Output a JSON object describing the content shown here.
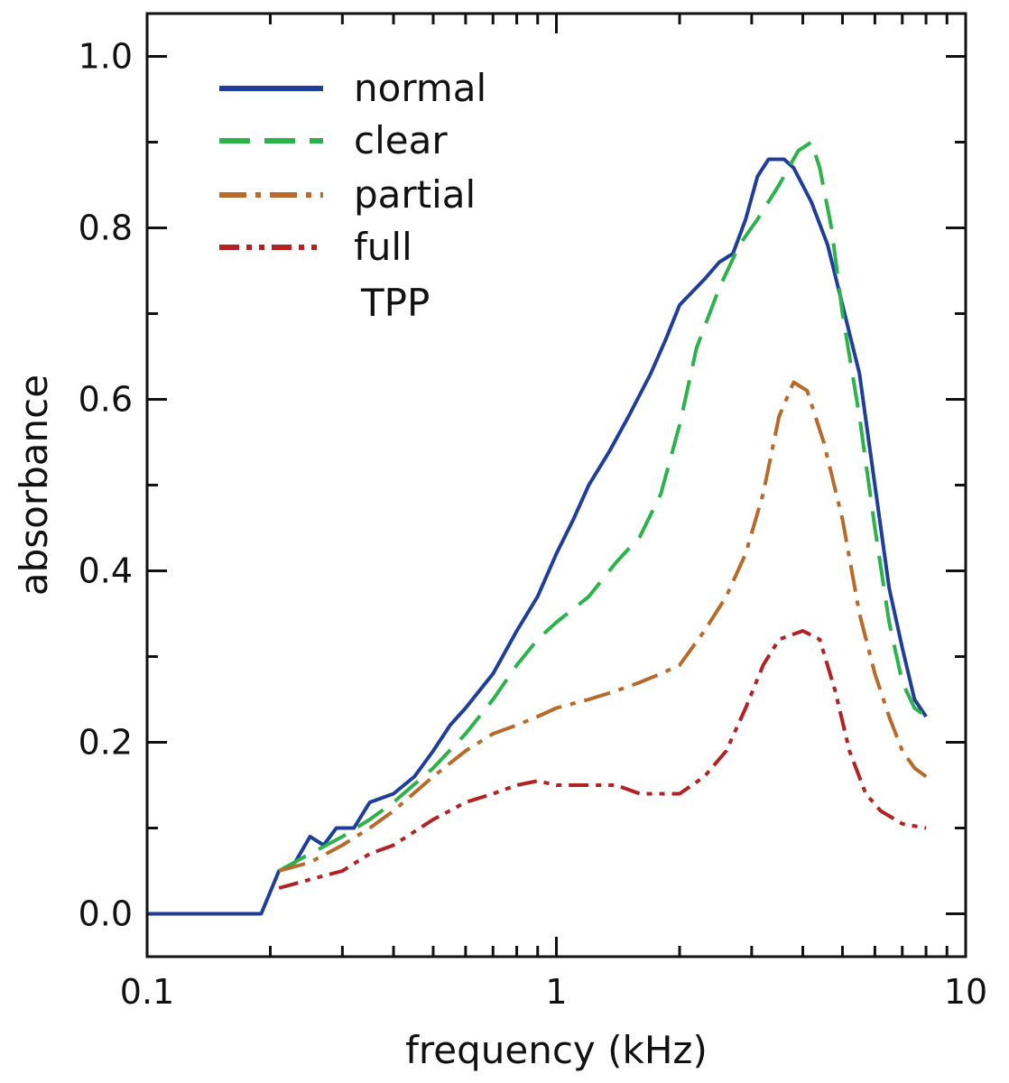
{
  "chart_data": {
    "type": "line",
    "xlabel": "frequency (kHz)",
    "ylabel": "absorbance",
    "xscale": "log",
    "xlim": [
      0.1,
      10
    ],
    "ylim": [
      -0.05,
      1.05
    ],
    "grid": false,
    "legend_position": "top-left",
    "legend_title": "TPP",
    "x_ticks": [
      {
        "value": 0.1,
        "label": "0.1"
      },
      {
        "value": 1,
        "label": "1"
      },
      {
        "value": 10,
        "label": "10"
      }
    ],
    "y_ticks": [
      {
        "value": 0.0,
        "label": "0.0"
      },
      {
        "value": 0.2,
        "label": "0.2"
      },
      {
        "value": 0.4,
        "label": "0.4"
      },
      {
        "value": 0.6,
        "label": "0.6"
      },
      {
        "value": 0.8,
        "label": "0.8"
      },
      {
        "value": 1.0,
        "label": "1.0"
      }
    ],
    "series": [
      {
        "name": "normal",
        "color": "#1f3e9c",
        "dash": "solid",
        "points": [
          [
            0.1,
            0
          ],
          [
            0.19,
            0
          ],
          [
            0.21,
            0.05
          ],
          [
            0.23,
            0.06
          ],
          [
            0.25,
            0.09
          ],
          [
            0.27,
            0.08
          ],
          [
            0.29,
            0.1
          ],
          [
            0.32,
            0.1
          ],
          [
            0.35,
            0.13
          ],
          [
            0.4,
            0.14
          ],
          [
            0.45,
            0.16
          ],
          [
            0.5,
            0.19
          ],
          [
            0.55,
            0.22
          ],
          [
            0.6,
            0.24
          ],
          [
            0.7,
            0.28
          ],
          [
            0.8,
            0.33
          ],
          [
            0.9,
            0.37
          ],
          [
            1.0,
            0.42
          ],
          [
            1.1,
            0.46
          ],
          [
            1.2,
            0.5
          ],
          [
            1.35,
            0.54
          ],
          [
            1.5,
            0.58
          ],
          [
            1.7,
            0.63
          ],
          [
            1.85,
            0.67
          ],
          [
            2.0,
            0.71
          ],
          [
            2.3,
            0.74
          ],
          [
            2.5,
            0.76
          ],
          [
            2.7,
            0.77
          ],
          [
            2.9,
            0.81
          ],
          [
            3.1,
            0.86
          ],
          [
            3.3,
            0.88
          ],
          [
            3.6,
            0.88
          ],
          [
            3.8,
            0.87
          ],
          [
            4.2,
            0.83
          ],
          [
            4.6,
            0.78
          ],
          [
            5.0,
            0.71
          ],
          [
            5.5,
            0.63
          ],
          [
            6.0,
            0.5
          ],
          [
            6.5,
            0.38
          ],
          [
            7.0,
            0.31
          ],
          [
            7.5,
            0.25
          ],
          [
            8.0,
            0.23
          ]
        ]
      },
      {
        "name": "clear",
        "color": "#2bb34a",
        "dash": "dashed",
        "points": [
          [
            0.21,
            0.05
          ],
          [
            0.25,
            0.07
          ],
          [
            0.3,
            0.09
          ],
          [
            0.35,
            0.11
          ],
          [
            0.4,
            0.13
          ],
          [
            0.5,
            0.17
          ],
          [
            0.6,
            0.21
          ],
          [
            0.7,
            0.25
          ],
          [
            0.8,
            0.29
          ],
          [
            0.9,
            0.32
          ],
          [
            1.0,
            0.34
          ],
          [
            1.2,
            0.37
          ],
          [
            1.4,
            0.41
          ],
          [
            1.6,
            0.44
          ],
          [
            1.8,
            0.49
          ],
          [
            2.0,
            0.57
          ],
          [
            2.2,
            0.66
          ],
          [
            2.5,
            0.73
          ],
          [
            2.8,
            0.78
          ],
          [
            3.1,
            0.81
          ],
          [
            3.5,
            0.85
          ],
          [
            3.9,
            0.89
          ],
          [
            4.2,
            0.9
          ],
          [
            4.4,
            0.87
          ],
          [
            4.7,
            0.8
          ],
          [
            5.0,
            0.7
          ],
          [
            5.5,
            0.58
          ],
          [
            6.0,
            0.45
          ],
          [
            6.5,
            0.34
          ],
          [
            7.0,
            0.27
          ],
          [
            7.5,
            0.24
          ],
          [
            8.0,
            0.23
          ]
        ]
      },
      {
        "name": "partial",
        "color": "#b86a2a",
        "dash": "dashdot",
        "points": [
          [
            0.21,
            0.05
          ],
          [
            0.25,
            0.06
          ],
          [
            0.3,
            0.08
          ],
          [
            0.35,
            0.1
          ],
          [
            0.4,
            0.12
          ],
          [
            0.5,
            0.16
          ],
          [
            0.6,
            0.19
          ],
          [
            0.7,
            0.21
          ],
          [
            0.8,
            0.22
          ],
          [
            0.9,
            0.23
          ],
          [
            1.0,
            0.24
          ],
          [
            1.2,
            0.25
          ],
          [
            1.4,
            0.26
          ],
          [
            1.6,
            0.27
          ],
          [
            1.8,
            0.28
          ],
          [
            2.0,
            0.29
          ],
          [
            2.3,
            0.33
          ],
          [
            2.6,
            0.37
          ],
          [
            2.9,
            0.42
          ],
          [
            3.2,
            0.49
          ],
          [
            3.5,
            0.58
          ],
          [
            3.8,
            0.62
          ],
          [
            4.1,
            0.61
          ],
          [
            4.5,
            0.55
          ],
          [
            5.0,
            0.46
          ],
          [
            5.5,
            0.35
          ],
          [
            6.0,
            0.28
          ],
          [
            6.5,
            0.23
          ],
          [
            7.0,
            0.19
          ],
          [
            7.5,
            0.17
          ],
          [
            8.0,
            0.16
          ]
        ]
      },
      {
        "name": "full",
        "color": "#b22222",
        "dash": "dashdotdot",
        "points": [
          [
            0.21,
            0.03
          ],
          [
            0.25,
            0.04
          ],
          [
            0.3,
            0.05
          ],
          [
            0.35,
            0.07
          ],
          [
            0.4,
            0.08
          ],
          [
            0.5,
            0.11
          ],
          [
            0.6,
            0.13
          ],
          [
            0.7,
            0.14
          ],
          [
            0.8,
            0.15
          ],
          [
            0.9,
            0.155
          ],
          [
            1.0,
            0.15
          ],
          [
            1.2,
            0.15
          ],
          [
            1.4,
            0.15
          ],
          [
            1.6,
            0.14
          ],
          [
            1.8,
            0.14
          ],
          [
            2.0,
            0.14
          ],
          [
            2.3,
            0.16
          ],
          [
            2.6,
            0.19
          ],
          [
            2.9,
            0.24
          ],
          [
            3.2,
            0.29
          ],
          [
            3.5,
            0.32
          ],
          [
            4.0,
            0.33
          ],
          [
            4.4,
            0.32
          ],
          [
            4.8,
            0.26
          ],
          [
            5.2,
            0.19
          ],
          [
            5.7,
            0.14
          ],
          [
            6.2,
            0.12
          ],
          [
            7.0,
            0.105
          ],
          [
            8.0,
            0.1
          ]
        ]
      }
    ]
  }
}
